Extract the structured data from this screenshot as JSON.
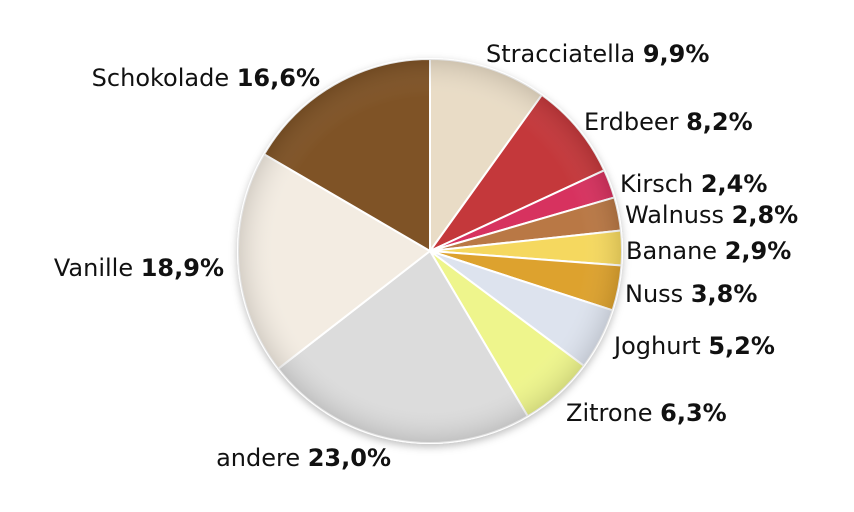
{
  "chart_data": {
    "type": "pie",
    "slices": [
      {
        "label": "Stracciatella",
        "value": 9.9,
        "value_text": "9,9%",
        "color": "#e9dcc6"
      },
      {
        "label": "Erdbeer",
        "value": 8.2,
        "value_text": "8,2%",
        "color": "#c4373a"
      },
      {
        "label": "Kirsch",
        "value": 2.4,
        "value_text": "2,4%",
        "color": "#d7325e"
      },
      {
        "label": "Walnuss",
        "value": 2.8,
        "value_text": "2,8%",
        "color": "#b97845"
      },
      {
        "label": "Banane",
        "value": 2.9,
        "value_text": "2,9%",
        "color": "#f5d85e"
      },
      {
        "label": "Nuss",
        "value": 3.8,
        "value_text": "3,8%",
        "color": "#dda22d"
      },
      {
        "label": "Joghurt",
        "value": 5.2,
        "value_text": "5,2%",
        "color": "#dde3ee"
      },
      {
        "label": "Zitrone",
        "value": 6.3,
        "value_text": "6,3%",
        "color": "#eef58c"
      },
      {
        "label": "andere",
        "value": 23.0,
        "value_text": "23,0%",
        "color": "#dcdcdc"
      },
      {
        "label": "Vanille",
        "value": 18.9,
        "value_text": "18,9%",
        "color": "#f3ece2"
      },
      {
        "label": "Schokolade",
        "value": 16.6,
        "value_text": "16,6%",
        "color": "#7f5326"
      }
    ],
    "start_angle": "12 o'clock",
    "direction": "clockwise",
    "legend": "none"
  }
}
